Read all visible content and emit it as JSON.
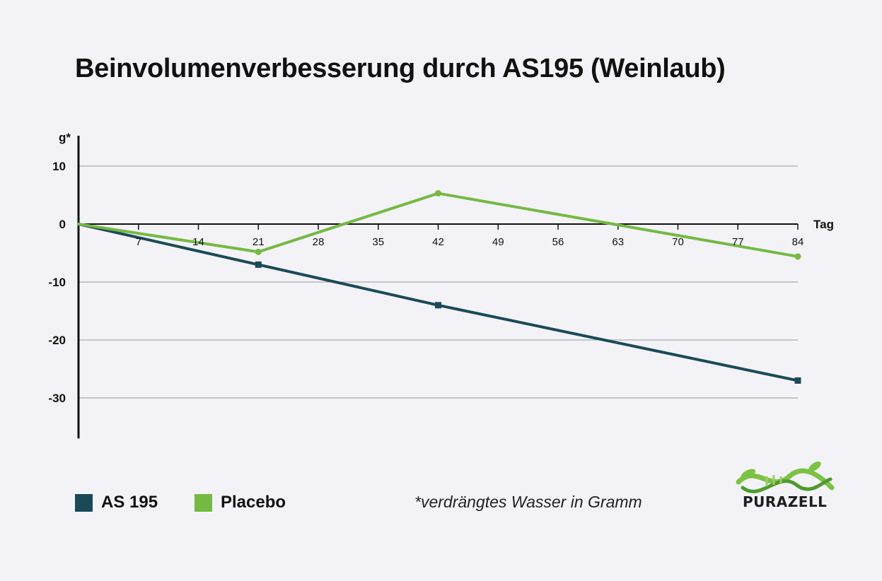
{
  "chart_data": {
    "type": "line",
    "title": "Beinvolumenverbesserung durch AS195 (Weinlaub)",
    "ylabel": "g*",
    "xlabel": "Tag",
    "x_ticks": [
      7,
      14,
      21,
      28,
      35,
      42,
      49,
      56,
      63,
      70,
      77,
      84
    ],
    "y_ticks": [
      10,
      0,
      -10,
      -20,
      -30
    ],
    "xlim": [
      0,
      84
    ],
    "ylim": [
      -37,
      15
    ],
    "grid": true,
    "legend_position": "bottom-left",
    "series": [
      {
        "name": "AS 195",
        "color": "#1b4a57",
        "marker": "square",
        "x": [
          0,
          21,
          42,
          84
        ],
        "y": [
          0,
          -7,
          -14,
          -27
        ]
      },
      {
        "name": "Placebo",
        "color": "#76b943",
        "marker": "circle",
        "x": [
          0,
          21,
          42,
          84
        ],
        "y": [
          0,
          -4.8,
          5.3,
          -5.6
        ]
      }
    ],
    "annotations": [
      "*verdrängtes Wasser in Gramm"
    ]
  },
  "legend": {
    "items": [
      {
        "label": "AS 195",
        "color": "#1b4a57"
      },
      {
        "label": "Placebo",
        "color": "#76b943"
      }
    ]
  },
  "footnote": "*verdrängtes Wasser in Gramm",
  "logo": {
    "text": "PURAZELL",
    "icon": "dna-leaf-icon",
    "colors": [
      "#7cc243",
      "#4f9a2e"
    ]
  }
}
